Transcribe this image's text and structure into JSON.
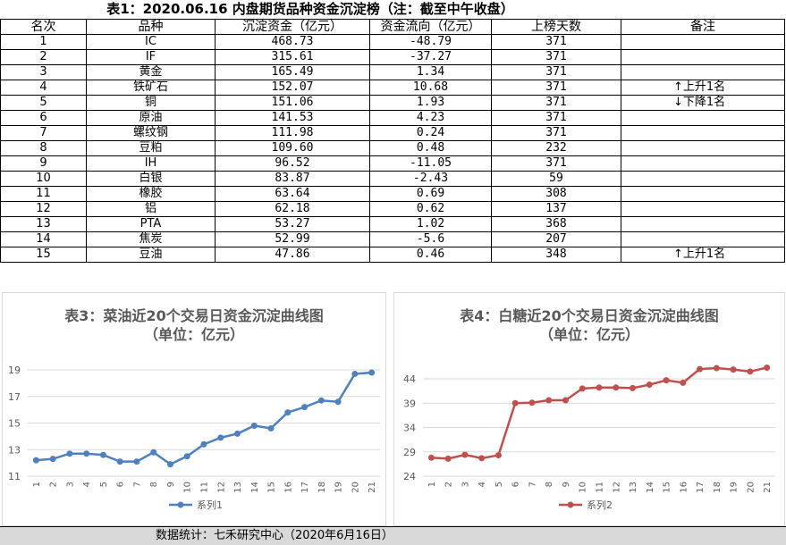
{
  "table": {
    "title": "表1：2020.06.16 内盘期货品种资金沉淀榜（注：截至中午收盘）",
    "headers": [
      "名次",
      "品种",
      "沉淀资金（亿元）",
      "资金流向（亿元）",
      "上榜天数",
      "备注"
    ],
    "rows": [
      {
        "rank": "1",
        "name": "IC",
        "fund": "468.73",
        "flow": "-48.79",
        "days": "371",
        "note": ""
      },
      {
        "rank": "2",
        "name": "IF",
        "fund": "315.61",
        "flow": "-37.27",
        "days": "371",
        "note": ""
      },
      {
        "rank": "3",
        "name": "黄金",
        "fund": "165.49",
        "flow": "1.34",
        "days": "371",
        "note": ""
      },
      {
        "rank": "4",
        "name": "铁矿石",
        "fund": "152.07",
        "flow": "10.68",
        "days": "371",
        "note": "↑上升1名"
      },
      {
        "rank": "5",
        "name": "铜",
        "fund": "151.06",
        "flow": "1.93",
        "days": "371",
        "note": "↓下降1名"
      },
      {
        "rank": "6",
        "name": "原油",
        "fund": "141.53",
        "flow": "4.23",
        "days": "371",
        "note": ""
      },
      {
        "rank": "7",
        "name": "螺纹钢",
        "fund": "111.98",
        "flow": "0.24",
        "days": "371",
        "note": ""
      },
      {
        "rank": "8",
        "name": "豆粕",
        "fund": "109.60",
        "flow": "0.48",
        "days": "232",
        "note": ""
      },
      {
        "rank": "9",
        "name": "IH",
        "fund": "96.52",
        "flow": "-11.05",
        "days": "371",
        "note": ""
      },
      {
        "rank": "10",
        "name": "白银",
        "fund": "83.87",
        "flow": "-2.43",
        "days": "59",
        "note": ""
      },
      {
        "rank": "11",
        "name": "橡胶",
        "fund": "63.64",
        "flow": "0.69",
        "days": "308",
        "note": ""
      },
      {
        "rank": "12",
        "name": "铝",
        "fund": "62.18",
        "flow": "0.62",
        "days": "137",
        "note": ""
      },
      {
        "rank": "13",
        "name": "PTA",
        "fund": "53.27",
        "flow": "1.02",
        "days": "368",
        "note": ""
      },
      {
        "rank": "14",
        "name": "焦炭",
        "fund": "52.99",
        "flow": "-5.6",
        "days": "207",
        "note": ""
      },
      {
        "rank": "15",
        "name": "豆油",
        "fund": "47.86",
        "flow": "0.46",
        "days": "348",
        "note": "↑上升1名"
      }
    ]
  },
  "chart_data": [
    {
      "type": "line",
      "title": "表3：菜油近20个交易日资金沉淀曲线图",
      "subtitle": "（单位：亿元）",
      "x": [
        "1",
        "2",
        "3",
        "4",
        "5",
        "6",
        "7",
        "8",
        "9",
        "10",
        "11",
        "12",
        "13",
        "14",
        "15",
        "16",
        "17",
        "18",
        "19",
        "20",
        "21"
      ],
      "series": [
        {
          "name": "系列1",
          "values": [
            12.2,
            12.3,
            12.7,
            12.7,
            12.6,
            12.1,
            12.1,
            12.8,
            11.9,
            12.5,
            13.4,
            13.9,
            14.2,
            14.8,
            14.6,
            15.8,
            16.2,
            16.7,
            16.6,
            18.7,
            18.8
          ]
        }
      ],
      "ylim": [
        11,
        19
      ],
      "yticks": [
        11,
        13,
        15,
        17,
        19
      ],
      "color": "#4f81bd",
      "legend": "bottom",
      "grid": true
    },
    {
      "type": "line",
      "title": "表4：白糖近20个交易日资金沉淀曲线图",
      "subtitle": "（单位：亿元）",
      "x": [
        "1",
        "2",
        "3",
        "4",
        "5",
        "6",
        "7",
        "8",
        "9",
        "10",
        "11",
        "12",
        "13",
        "14",
        "15",
        "16",
        "17",
        "18",
        "19",
        "20",
        "21"
      ],
      "series": [
        {
          "name": "系列2",
          "values": [
            27.8,
            27.6,
            28.4,
            27.7,
            28.3,
            39.0,
            39.1,
            39.6,
            39.6,
            42.0,
            42.2,
            42.2,
            42.1,
            42.8,
            43.7,
            43.2,
            46.0,
            46.2,
            45.9,
            45.5,
            46.3
          ]
        }
      ],
      "ylim": [
        24,
        44
      ],
      "yticks": [
        24,
        29,
        34,
        39,
        44
      ],
      "color": "#c0504d",
      "legend": "bottom",
      "grid": true
    }
  ],
  "footer": "数据统计：七禾研究中心（2020年6月16日）"
}
